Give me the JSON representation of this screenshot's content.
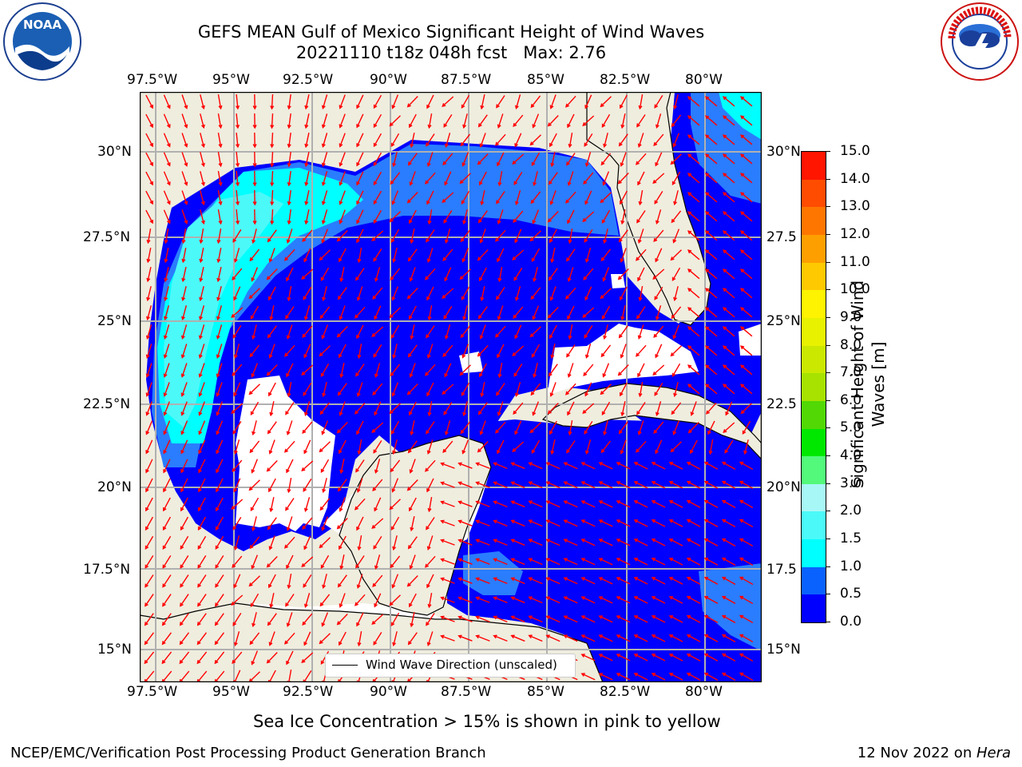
{
  "header": {
    "title_line1": "GEFS MEAN Gulf of Mexico Significant Height of Wind Waves",
    "title_line2": "20221110 t18z 048h fcst   Max: 2.76"
  },
  "logos": {
    "left": {
      "name": "noaa-logo",
      "text": "NOAA",
      "ring_text": "NATIONAL OCEANIC AND ATMOSPHERIC ADMINISTRATION · U.S. DEPARTMENT OF COMMERCE"
    },
    "right": {
      "name": "nws-logo",
      "ring_text": "NATIONAL WEATHER SERVICE"
    }
  },
  "map": {
    "lon_labels": [
      "97.5°W",
      "95°W",
      "92.5°W",
      "90°W",
      "87.5°W",
      "85°W",
      "82.5°W",
      "80°W"
    ],
    "lat_labels": [
      "30°N",
      "27.5°N",
      "25°N",
      "22.5°N",
      "20°N",
      "17.5°N",
      "15°N"
    ],
    "right_lat_labels": [
      "30°N",
      "27.5",
      "25°N",
      "22.5",
      "20°N",
      "17.5",
      "15°N"
    ],
    "legend_label": "Wind Wave Direction (unscaled)",
    "colors": {
      "land": "#efedde",
      "ocean_low": "#0000fe",
      "ocean_mid": "#2a7dfe",
      "ocean_high": "#00ffff",
      "arrow": "#ff0000",
      "grid": "#b0b0b0"
    }
  },
  "colorbar": {
    "label": "Significant Height of Wind Waves [m]",
    "ticks": [
      "0.0",
      "0.5",
      "1.0",
      "1.5",
      "2.0",
      "3.0",
      "4.0",
      "5.0",
      "6.0",
      "7.0",
      "8.0",
      "9.0",
      "10.0",
      "11.0",
      "12.0",
      "13.0",
      "14.0",
      "15.0"
    ],
    "colors": [
      "#0000fe",
      "#0a62fe",
      "#00ffff",
      "#4cf9f9",
      "#a8f7f7",
      "#53f97a",
      "#00e800",
      "#52d805",
      "#a7e200",
      "#cbe900",
      "#e8f200",
      "#fef300",
      "#fec900",
      "#fe9f00",
      "#fe7600",
      "#ff4c00",
      "#ff1500"
    ]
  },
  "notes": {
    "ice_note": "Sea Ice Concentration > 15% is shown in pink to yellow"
  },
  "footer": {
    "left": "NCEP/EMC/Verification Post Processing Product Generation Branch",
    "date": "12 Nov 2022 on ",
    "host": "Hera"
  }
}
